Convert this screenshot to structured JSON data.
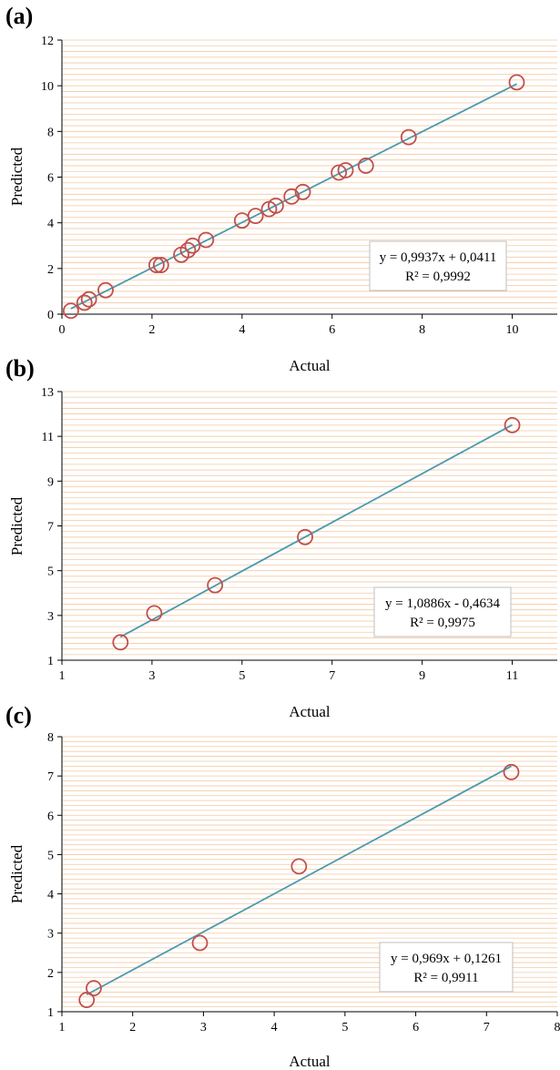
{
  "chart_data": [
    {
      "panel_label": "(a)",
      "type": "scatter",
      "xlabel": "Actual",
      "ylabel": "Predicted",
      "xlim": [
        0,
        11
      ],
      "ylim": [
        0,
        12
      ],
      "x_ticks": [
        0,
        2,
        4,
        6,
        8,
        10
      ],
      "y_ticks": [
        0,
        2,
        4,
        6,
        8,
        10,
        12
      ],
      "grid": "horizontal minor lines",
      "points": [
        {
          "x": 0.2,
          "y": 0.15
        },
        {
          "x": 0.5,
          "y": 0.5
        },
        {
          "x": 0.6,
          "y": 0.65
        },
        {
          "x": 0.97,
          "y": 1.05
        },
        {
          "x": 2.1,
          "y": 2.15
        },
        {
          "x": 2.2,
          "y": 2.15
        },
        {
          "x": 2.65,
          "y": 2.6
        },
        {
          "x": 2.8,
          "y": 2.8
        },
        {
          "x": 2.9,
          "y": 3.0
        },
        {
          "x": 3.2,
          "y": 3.25
        },
        {
          "x": 4.0,
          "y": 4.1
        },
        {
          "x": 4.3,
          "y": 4.3
        },
        {
          "x": 4.6,
          "y": 4.6
        },
        {
          "x": 4.75,
          "y": 4.75
        },
        {
          "x": 5.1,
          "y": 5.15
        },
        {
          "x": 5.35,
          "y": 5.35
        },
        {
          "x": 6.15,
          "y": 6.2
        },
        {
          "x": 6.3,
          "y": 6.3
        },
        {
          "x": 6.75,
          "y": 6.5
        },
        {
          "x": 7.7,
          "y": 7.75
        },
        {
          "x": 10.1,
          "y": 10.15
        }
      ],
      "trendline": {
        "slope": 0.9937,
        "intercept": 0.0411,
        "x_range": [
          0.2,
          10.1
        ]
      },
      "equation": "y = 0,9937x + 0,0411",
      "r2": "R² = 0,9992"
    },
    {
      "panel_label": "(b)",
      "type": "scatter",
      "xlabel": "Actual",
      "ylabel": "Predicted",
      "xlim": [
        1,
        12
      ],
      "ylim": [
        1,
        13
      ],
      "x_ticks": [
        1,
        3,
        5,
        7,
        9,
        11
      ],
      "y_ticks": [
        1,
        3,
        5,
        7,
        9,
        11,
        13
      ],
      "grid": "horizontal minor lines",
      "points": [
        {
          "x": 2.3,
          "y": 1.8
        },
        {
          "x": 3.05,
          "y": 3.1
        },
        {
          "x": 4.4,
          "y": 4.35
        },
        {
          "x": 6.4,
          "y": 6.5
        },
        {
          "x": 11.0,
          "y": 11.5
        }
      ],
      "trendline": {
        "slope": 1.0886,
        "intercept": -0.4634,
        "x_range": [
          2.3,
          11.0
        ]
      },
      "equation": "y = 1,0886x - 0,4634",
      "r2": "R² = 0,9975"
    },
    {
      "panel_label": "(c)",
      "type": "scatter",
      "xlabel": "Actual",
      "ylabel": "Predicted",
      "xlim": [
        1,
        8
      ],
      "ylim": [
        1,
        8
      ],
      "x_ticks": [
        1,
        2,
        3,
        4,
        5,
        6,
        7,
        8
      ],
      "y_ticks": [
        1,
        2,
        3,
        4,
        5,
        6,
        7,
        8
      ],
      "grid": "horizontal minor lines",
      "points": [
        {
          "x": 1.35,
          "y": 1.3
        },
        {
          "x": 1.45,
          "y": 1.6
        },
        {
          "x": 2.95,
          "y": 2.75
        },
        {
          "x": 4.35,
          "y": 4.7
        },
        {
          "x": 7.35,
          "y": 7.1
        }
      ],
      "trendline": {
        "slope": 0.969,
        "intercept": 0.1261,
        "x_range": [
          1.35,
          7.35
        ]
      },
      "equation": "y = 0,969x + 0,1261",
      "r2": "R² = 0,9911"
    }
  ],
  "colors": {
    "marker": "#c0504d",
    "trendline": "#4a9ab0",
    "grid": "#f3c9a3",
    "axis": "#000000",
    "equation_border": "#bfbfbf"
  }
}
